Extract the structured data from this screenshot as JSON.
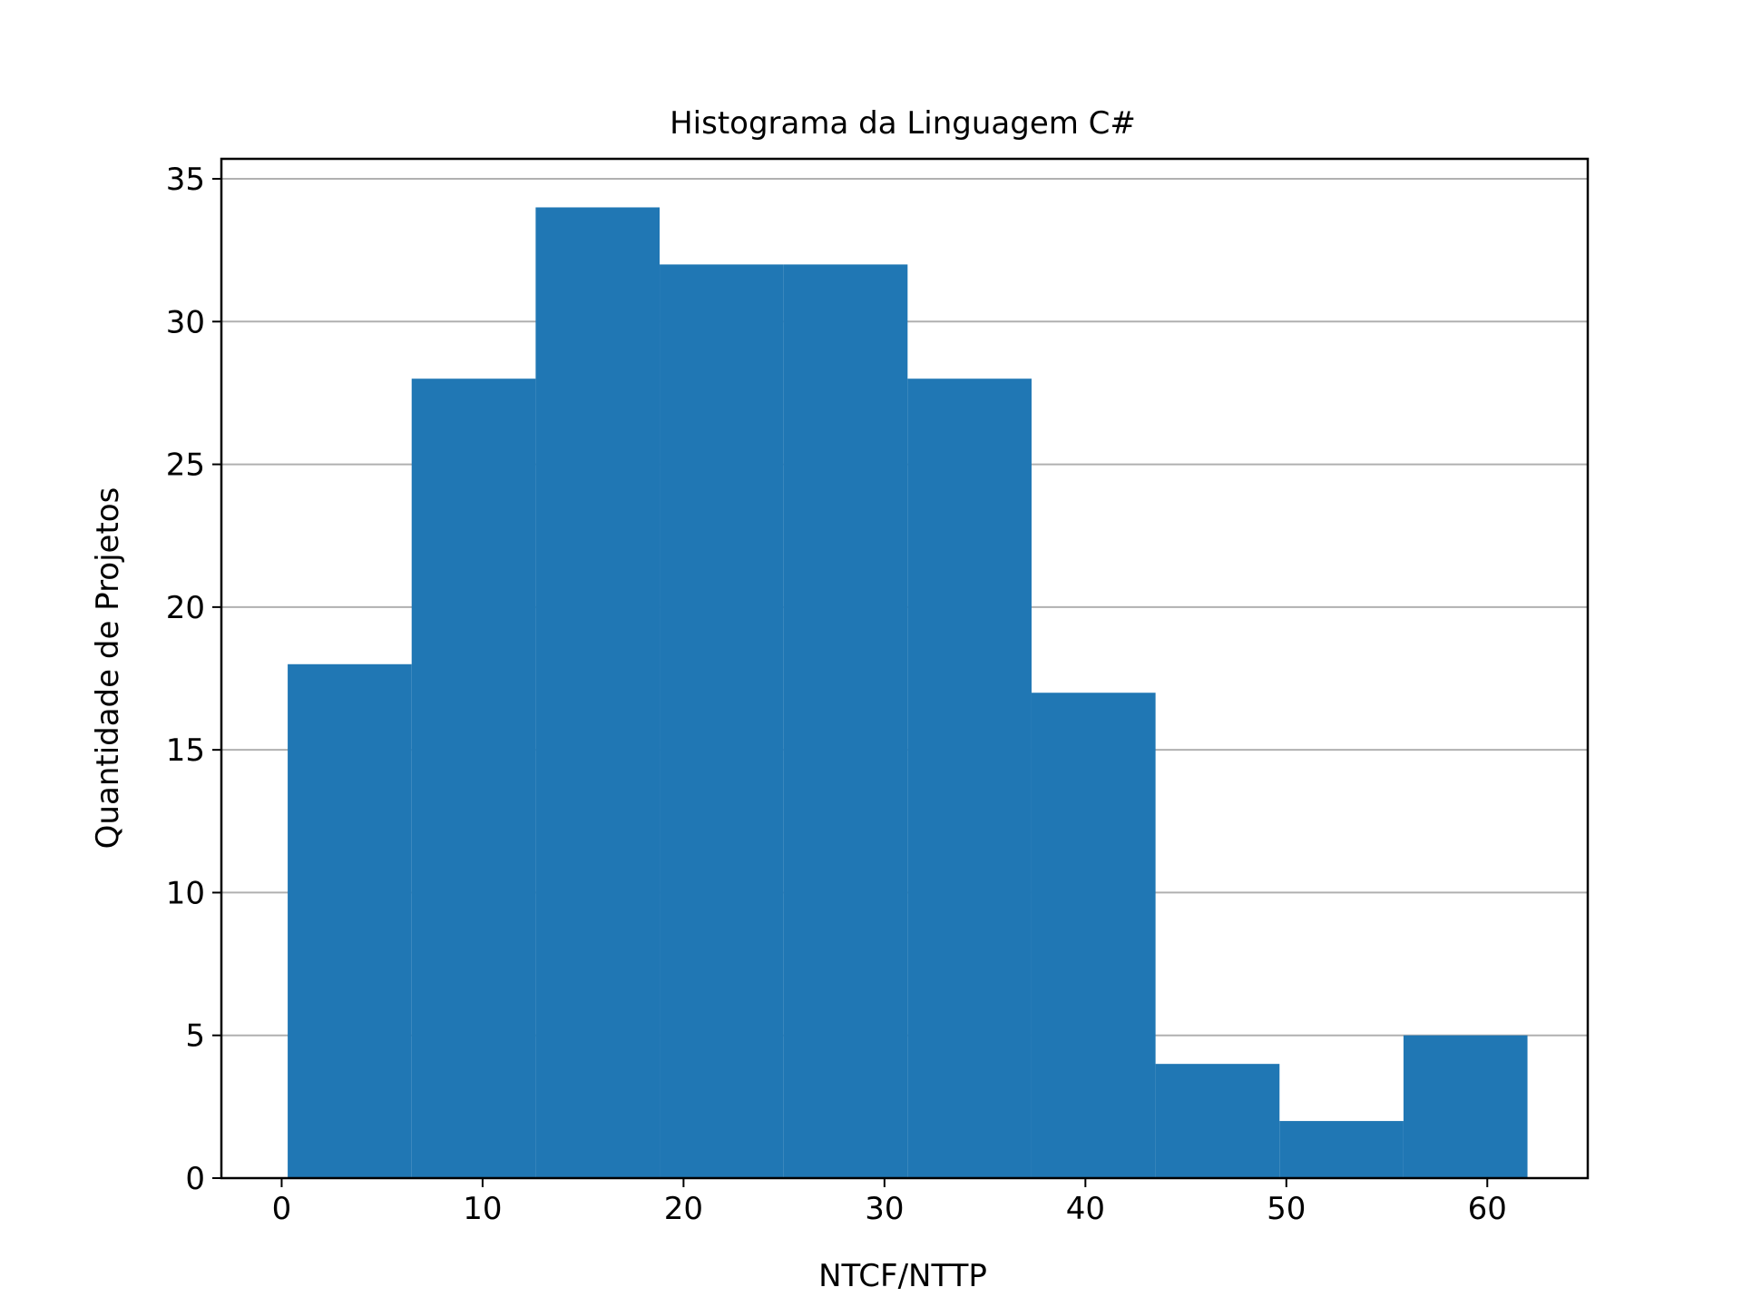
{
  "chart_data": {
    "type": "bar",
    "title": "Histograma da Linguagem C#",
    "xlabel": "NTCF/NTTP",
    "ylabel": "Quantidade de Projetos",
    "bin_edges": [
      0.3,
      6.47,
      12.64,
      18.81,
      24.98,
      31.15,
      37.32,
      43.49,
      49.66,
      55.83,
      62.0
    ],
    "values": [
      18,
      28,
      34,
      32,
      32,
      28,
      17,
      4,
      2,
      5
    ],
    "xlim": [
      -3,
      65
    ],
    "ylim": [
      0,
      35.7
    ],
    "xticks": [
      0,
      10,
      20,
      30,
      40,
      50,
      60
    ],
    "xtick_labels": [
      "0",
      "10",
      "20",
      "30",
      "40",
      "50",
      "60"
    ],
    "yticks": [
      0,
      5,
      10,
      15,
      20,
      25,
      30,
      35
    ],
    "ytick_labels": [
      "0",
      "5",
      "10",
      "15",
      "20",
      "25",
      "30",
      "35"
    ],
    "grid": "horizontal",
    "bar_color": "#2077b4",
    "grid_color": "#b0b0b0"
  }
}
